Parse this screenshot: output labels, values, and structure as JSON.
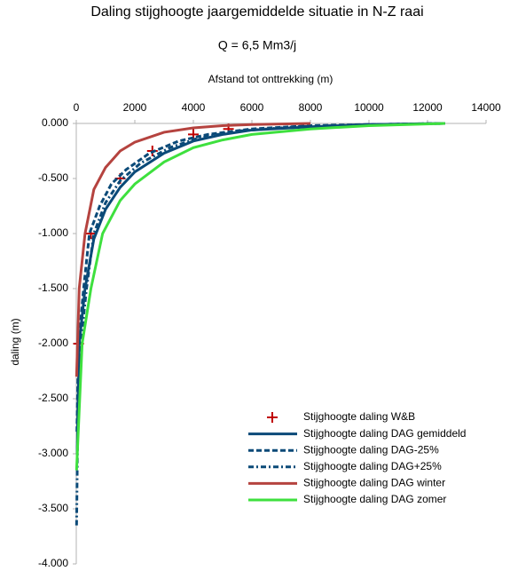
{
  "chart_data": {
    "type": "line",
    "title": "Daling stijghoogte jaargemiddelde situatie in N-Z raai",
    "subtitle": "Q = 6,5 Mm3/j",
    "x_label": "Afstand tot onttrekking (m)",
    "y_label": "daling (m)",
    "xlim": [
      0,
      14000
    ],
    "xticks": [
      0,
      2000,
      4000,
      6000,
      8000,
      10000,
      12000,
      14000
    ],
    "ylim": [
      -4,
      0
    ],
    "yticks": [
      {
        "value": 0,
        "label": "0.000"
      },
      {
        "value": -0.5,
        "label": "-0.500"
      },
      {
        "value": -1,
        "label": "-1.000"
      },
      {
        "value": -1.5,
        "label": "-1.500"
      },
      {
        "value": -2,
        "label": "-2.000"
      },
      {
        "value": -2.5,
        "label": "-2.500"
      },
      {
        "value": -3,
        "label": "-3.000"
      },
      {
        "value": -3.5,
        "label": "-3.500"
      },
      {
        "value": -4,
        "label": "-4.000"
      }
    ],
    "legend": "lower right",
    "grid": false,
    "series": [
      {
        "name": "Stijghoogte daling W&B",
        "color": "#c00000",
        "line_style": "none",
        "marker": "+",
        "x": [
          80,
          500,
          1500,
          2600,
          4000,
          5200
        ],
        "values": [
          -2.0,
          -1.0,
          -0.5,
          -0.25,
          -0.1,
          -0.05
        ]
      },
      {
        "name": "Stijghoogte daling DAG gemiddeld",
        "color": "#0b4a78",
        "line_style": "solid",
        "x": [
          30,
          100,
          300,
          600,
          1000,
          1500,
          2000,
          3000,
          4000,
          5000,
          6000,
          8000,
          10000,
          12600
        ],
        "values": [
          -3.0,
          -2.0,
          -1.5,
          -1.05,
          -0.78,
          -0.58,
          -0.44,
          -0.27,
          -0.16,
          -0.1,
          -0.06,
          -0.03,
          -0.01,
          0
        ]
      },
      {
        "name": "Stijghoogte daling DAG-25%",
        "color": "#0b4a78",
        "line_style": "dashed",
        "x": [
          20,
          80,
          250,
          450,
          800,
          1200,
          1700,
          2500,
          3500,
          4500,
          6000,
          8000,
          10000,
          12600
        ],
        "values": [
          -2.8,
          -2.0,
          -1.5,
          -1.0,
          -0.75,
          -0.55,
          -0.42,
          -0.27,
          -0.16,
          -0.1,
          -0.05,
          -0.02,
          -0.01,
          0
        ]
      },
      {
        "name": "Stijghoogte daling DAG+25%",
        "color": "#0b4a78",
        "line_style": "dashdot",
        "x": [
          10,
          60,
          150,
          350,
          600,
          1000,
          1500,
          2200,
          3200,
          4200,
          5500,
          7500,
          10000,
          12600
        ],
        "values": [
          -3.65,
          -2.5,
          -2.0,
          -1.5,
          -1.0,
          -0.72,
          -0.52,
          -0.36,
          -0.22,
          -0.13,
          -0.07,
          -0.03,
          -0.01,
          0
        ]
      },
      {
        "name": "Stijghoogte daling DAG winter",
        "color": "#b5433f",
        "line_style": "solid",
        "x": [
          10,
          100,
          300,
          600,
          1000,
          1500,
          2000,
          3000,
          4000,
          5000,
          6000,
          8000
        ],
        "values": [
          -2.3,
          -1.5,
          -1.0,
          -0.6,
          -0.4,
          -0.25,
          -0.17,
          -0.08,
          -0.04,
          -0.02,
          -0.01,
          0
        ]
      },
      {
        "name": "Stijghoogte daling DAG zomer",
        "color": "#3ee03e",
        "line_style": "solid",
        "x": [
          10,
          200,
          500,
          900,
          1500,
          2000,
          3000,
          4000,
          5000,
          6000,
          8000,
          10000,
          12600
        ],
        "values": [
          -3.15,
          -2.0,
          -1.5,
          -1.0,
          -0.7,
          -0.55,
          -0.35,
          -0.22,
          -0.15,
          -0.1,
          -0.05,
          -0.02,
          0
        ]
      }
    ]
  }
}
